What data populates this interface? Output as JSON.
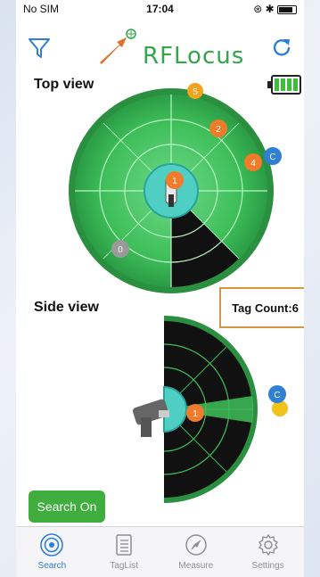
{
  "status_bar": {
    "carrier": "No SIM",
    "time": "17:04",
    "right_icons": "⊛ ✱"
  },
  "nav": {
    "logo_text": "RFLocus",
    "filter_icon": "filter-icon",
    "refresh_icon": "refresh-icon"
  },
  "top_view": {
    "title": "Top view",
    "battery_level": 1.0,
    "tags": [
      {
        "label": "5",
        "color": "#f2a31b"
      },
      {
        "label": "2",
        "color": "#f07b2a"
      },
      {
        "label": "4",
        "color": "#f07b2a"
      },
      {
        "label": "C",
        "color": "#2f7fd4"
      },
      {
        "label": "1",
        "color": "#f07b2a"
      },
      {
        "label": "0",
        "color": "#9a9a9a"
      }
    ]
  },
  "side_view": {
    "title": "Side view",
    "tags": [
      {
        "label": "1",
        "color": "#f07b2a"
      },
      {
        "label": "C",
        "color": "#2f7fd4"
      }
    ]
  },
  "tag_count_label": "Tag Count:6",
  "search_button": "Search On",
  "tabs": [
    {
      "label": "Search",
      "icon": "radar-icon",
      "active": true
    },
    {
      "label": "TagList",
      "icon": "list-icon",
      "active": false
    },
    {
      "label": "Measure",
      "icon": "compass-icon",
      "active": false
    },
    {
      "label": "Settings",
      "icon": "gear-icon",
      "active": false
    }
  ],
  "colors": {
    "accent": "#3fae3f",
    "radar_green": "#3fbf5a",
    "tab_active": "#2d7fd6"
  }
}
